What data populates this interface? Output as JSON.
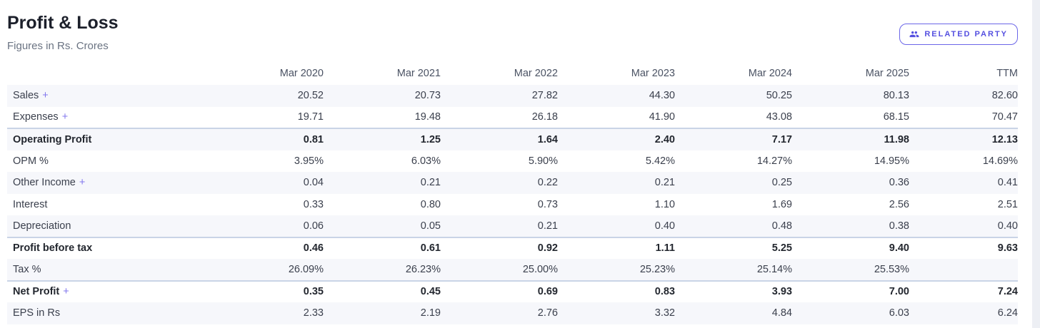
{
  "header": {
    "title": "Profit & Loss",
    "subtitle": "Figures in Rs. Crores",
    "related_party_label": "RELATED PARTY",
    "related_party_icon": "people-group-icon"
  },
  "colors": {
    "accent": "#5550e0",
    "accent_border": "#6b66e8",
    "plus": "#8277ee",
    "stripe": "#f6f7fb",
    "strong_row_border": "#c9d4e6"
  },
  "table": {
    "expand_symbol": "+",
    "columns": [
      "Mar 2020",
      "Mar 2021",
      "Mar 2022",
      "Mar 2023",
      "Mar 2024",
      "Mar 2025",
      "TTM"
    ],
    "rows": [
      {
        "label": "Sales",
        "expandable": true,
        "bold": false,
        "values": [
          "20.52",
          "20.73",
          "27.82",
          "44.30",
          "50.25",
          "80.13",
          "82.60"
        ]
      },
      {
        "label": "Expenses",
        "expandable": true,
        "bold": false,
        "values": [
          "19.71",
          "19.48",
          "26.18",
          "41.90",
          "43.08",
          "68.15",
          "70.47"
        ]
      },
      {
        "label": "Operating Profit",
        "expandable": false,
        "bold": true,
        "values": [
          "0.81",
          "1.25",
          "1.64",
          "2.40",
          "7.17",
          "11.98",
          "12.13"
        ]
      },
      {
        "label": "OPM %",
        "expandable": false,
        "bold": false,
        "values": [
          "3.95%",
          "6.03%",
          "5.90%",
          "5.42%",
          "14.27%",
          "14.95%",
          "14.69%"
        ]
      },
      {
        "label": "Other Income",
        "expandable": true,
        "bold": false,
        "values": [
          "0.04",
          "0.21",
          "0.22",
          "0.21",
          "0.25",
          "0.36",
          "0.41"
        ]
      },
      {
        "label": "Interest",
        "expandable": false,
        "bold": false,
        "values": [
          "0.33",
          "0.80",
          "0.73",
          "1.10",
          "1.69",
          "2.56",
          "2.51"
        ]
      },
      {
        "label": "Depreciation",
        "expandable": false,
        "bold": false,
        "values": [
          "0.06",
          "0.05",
          "0.21",
          "0.40",
          "0.48",
          "0.38",
          "0.40"
        ]
      },
      {
        "label": "Profit before tax",
        "expandable": false,
        "bold": true,
        "values": [
          "0.46",
          "0.61",
          "0.92",
          "1.11",
          "5.25",
          "9.40",
          "9.63"
        ]
      },
      {
        "label": "Tax %",
        "expandable": false,
        "bold": false,
        "values": [
          "26.09%",
          "26.23%",
          "25.00%",
          "25.23%",
          "25.14%",
          "25.53%",
          ""
        ]
      },
      {
        "label": "Net Profit",
        "expandable": true,
        "bold": true,
        "values": [
          "0.35",
          "0.45",
          "0.69",
          "0.83",
          "3.93",
          "7.00",
          "7.24"
        ]
      },
      {
        "label": "EPS in Rs",
        "expandable": false,
        "bold": false,
        "values": [
          "2.33",
          "2.19",
          "2.76",
          "3.32",
          "4.84",
          "6.03",
          "6.24"
        ]
      }
    ]
  }
}
